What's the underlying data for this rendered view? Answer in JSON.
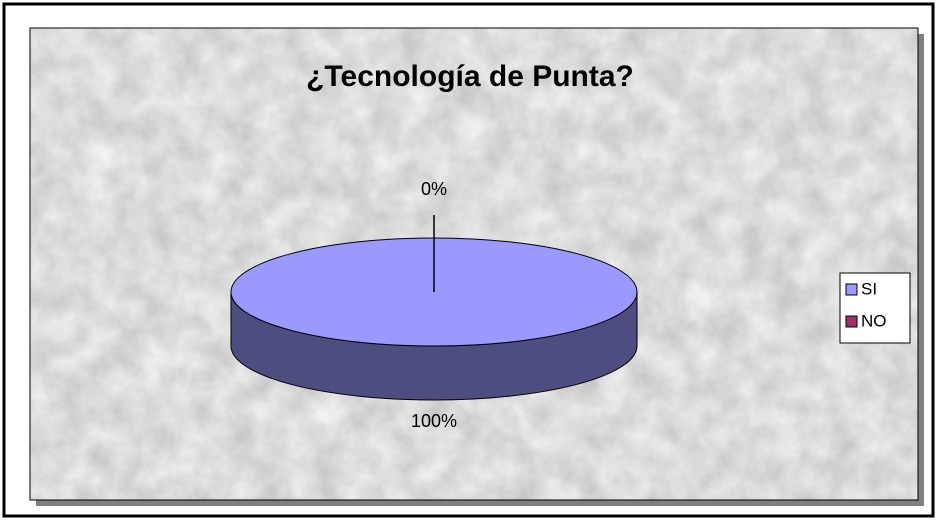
{
  "chart_data": {
    "type": "pie",
    "title": "¿Tecnología de Punta?",
    "categories": [
      "SI",
      "NO"
    ],
    "values": [
      100,
      0
    ],
    "value_labels": [
      "100%",
      "0%"
    ],
    "colors": [
      "#9999ff",
      "#993366"
    ],
    "legend": "right"
  }
}
